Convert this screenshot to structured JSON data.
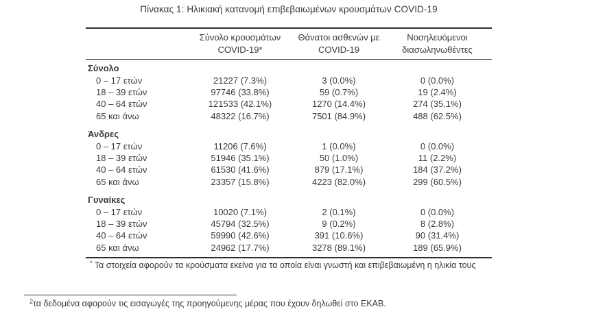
{
  "title": "Πίνακας 1: Ηλικιακή κατανομή επιβεβαιωμένων κρουσμάτων COVID-19",
  "table": {
    "columns": [
      {
        "line1": "Σύνολο κρουσμάτων",
        "line2": "COVID-19*"
      },
      {
        "line1": "Θάνατοι ασθενών με",
        "line2": "COVID-19"
      },
      {
        "line1": "Νοσηλευόμενοι",
        "line2": "διασωληνωθέντες"
      }
    ],
    "sections": [
      {
        "label": "Σύνολο",
        "rows": [
          {
            "age": "0 – 17 ετών",
            "cases": "21227 (7.3%)",
            "deaths": "3 (0.0%)",
            "intubated": "0 (0.0%)"
          },
          {
            "age": "18 – 39 ετών",
            "cases": "97746 (33.8%)",
            "deaths": "59 (0.7%)",
            "intubated": "19 (2.4%)"
          },
          {
            "age": "40 – 64 ετών",
            "cases": "121533 (42.1%)",
            "deaths": "1270 (14.4%)",
            "intubated": "274 (35.1%)"
          },
          {
            "age": "65 και άνω",
            "cases": "48322 (16.7%)",
            "deaths": "7501 (84.9%)",
            "intubated": "488 (62.5%)"
          }
        ]
      },
      {
        "label": "Άνδρες",
        "rows": [
          {
            "age": "0 – 17 ετών",
            "cases": "11206 (7.6%)",
            "deaths": "1 (0.0%)",
            "intubated": "0 (0.0%)"
          },
          {
            "age": "18 – 39 ετών",
            "cases": "51946 (35.1%)",
            "deaths": "50 (1.0%)",
            "intubated": "11 (2.2%)"
          },
          {
            "age": "40 – 64 ετών",
            "cases": "61530 (41.6%)",
            "deaths": "879 (17.1%)",
            "intubated": "184 (37.2%)"
          },
          {
            "age": "65 και άνω",
            "cases": "23357 (15.8%)",
            "deaths": "4223 (82.0%)",
            "intubated": "299 (60.5%)"
          }
        ]
      },
      {
        "label": "Γυναίκες",
        "rows": [
          {
            "age": "0 – 17 ετών",
            "cases": "10020 (7.1%)",
            "deaths": "2 (0.1%)",
            "intubated": "0 (0.0%)"
          },
          {
            "age": "18 – 39 ετών",
            "cases": "45794 (32.5%)",
            "deaths": "9 (0.2%)",
            "intubated": "8 (2.8%)"
          },
          {
            "age": "40 – 64 ετών",
            "cases": "59990 (42.6%)",
            "deaths": "391 (10.6%)",
            "intubated": "90 (31.4%)"
          },
          {
            "age": "65 και άνω",
            "cases": "24962 (17.7%)",
            "deaths": "3278 (89.1%)",
            "intubated": "189 (65.9%)"
          }
        ]
      }
    ],
    "footnote_marker": "*",
    "footnote": "Τα στοιχεία αφορούν τα κρούσματα εκείνα για τα οποία είναι γνωστή και επιβεβαιωμένη η ηλικία τους"
  },
  "page_footnote": {
    "marker": "2",
    "text": "τα δεδομένα αφορούν τις εισαγωγές της προηγούμενης μέρας που έχουν δηλωθεί στο ΕΚΑΒ."
  },
  "colors": {
    "text": "#3a3a3a",
    "line": "#2d2d2d",
    "background": "#ffffff"
  }
}
